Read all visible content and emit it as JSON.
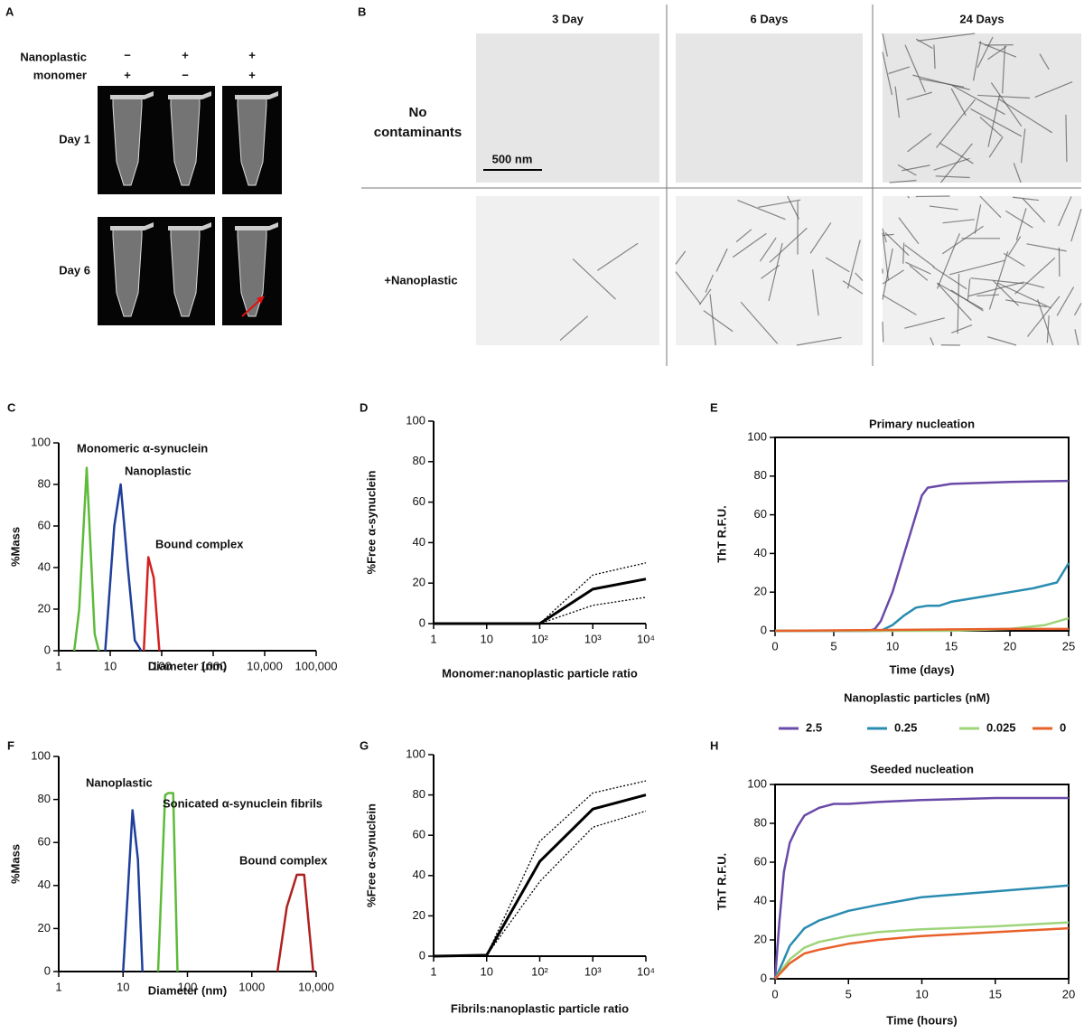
{
  "panel_a": {
    "label": "A",
    "row_header_labels": [
      "Nanoplastic",
      "monomer"
    ],
    "columns": [
      {
        "nanoplastic": "−",
        "monomer": "+"
      },
      {
        "nanoplastic": "+",
        "monomer": "−"
      },
      {
        "nanoplastic": "+",
        "monomer": "+"
      }
    ],
    "rows": [
      "Day 1",
      "Day 6"
    ]
  },
  "panel_b": {
    "label": "B",
    "columns": [
      "3 Day",
      "6 Days",
      "24 Days"
    ],
    "rows": [
      "No contaminants",
      "+Nanoplastic"
    ],
    "scale_bar": "500 nm"
  },
  "chart_data": [
    {
      "type": "line",
      "panel_label": "C",
      "xlabel": "Diameter (nm)",
      "ylabel": "%Mass",
      "xscale": "log",
      "xlim": [
        1,
        100000
      ],
      "xticks": [
        1,
        10,
        100,
        1000,
        {
          "value": 10000,
          "label": "10,000"
        },
        {
          "value": 100000,
          "label": "100,000"
        }
      ],
      "ylim": [
        0,
        100
      ],
      "yticks": [
        0,
        20,
        40,
        60,
        80,
        100
      ],
      "series": [
        {
          "color": "#5dbb3a",
          "x": [
            2,
            2.5,
            3.5,
            5,
            6
          ],
          "values": [
            0,
            20,
            88,
            8,
            0
          ]
        },
        {
          "color": "#1f3f9a",
          "x": [
            8,
            12,
            16,
            22,
            30,
            40
          ],
          "values": [
            0,
            60,
            80,
            40,
            5,
            0
          ]
        },
        {
          "color": "#d42020",
          "x": [
            45,
            55,
            70,
            90
          ],
          "values": [
            0,
            45,
            35,
            0
          ]
        }
      ],
      "annotations": [
        {
          "text": "Monomeric α-synuclein",
          "color": "#5dbb3a"
        },
        {
          "text": "Nanoplastic",
          "color": "#1f3f9a"
        },
        {
          "text": "Bound complex",
          "color": "#c02020"
        }
      ]
    },
    {
      "type": "line",
      "panel_label": "D",
      "xlabel": "Monomer:nanoplastic particle ratio",
      "ylabel": "%Free α-synuclein",
      "xscale": "log",
      "xlim": [
        1,
        10000
      ],
      "xticks": [
        1,
        10,
        {
          "value": 100,
          "label": "10²"
        },
        {
          "value": 1000,
          "label": "10³"
        },
        {
          "value": 10000,
          "label": "10⁴"
        }
      ],
      "ylim": [
        0,
        100
      ],
      "yticks": [
        0,
        20,
        40,
        60,
        80,
        100
      ],
      "series": [
        {
          "color": "#000000",
          "style": "solid",
          "x": [
            1,
            10,
            100,
            1000,
            10000
          ],
          "values": [
            0,
            0,
            0,
            17,
            22
          ]
        },
        {
          "color": "#000000",
          "style": "dotted",
          "x": [
            1,
            10,
            100,
            1000,
            10000
          ],
          "values": [
            0,
            0,
            0,
            24,
            30
          ]
        },
        {
          "color": "#000000",
          "style": "dotted",
          "x": [
            1,
            10,
            100,
            1000,
            10000
          ],
          "values": [
            0,
            0,
            0,
            9,
            13
          ]
        }
      ]
    },
    {
      "type": "line",
      "panel_label": "E",
      "title": "Primary nucleation",
      "xlabel": "Time (days)",
      "ylabel": "ThT R.F.U.",
      "frame": true,
      "xlim": [
        0,
        25
      ],
      "xticks": [
        0,
        5,
        10,
        15,
        20,
        25
      ],
      "ylim": [
        0,
        100
      ],
      "yticks": [
        0,
        20,
        40,
        60,
        80,
        100
      ],
      "legend_title": "Nanoplastic particles (nM)",
      "series": [
        {
          "name": "2.5",
          "color": "#6a4aa8",
          "x": [
            0,
            8,
            8.5,
            9,
            10,
            11,
            12,
            12.5,
            13,
            15,
            20,
            25
          ],
          "values": [
            0,
            0,
            1,
            5,
            20,
            40,
            60,
            70,
            74,
            76,
            77,
            77.5
          ]
        },
        {
          "name": "0.25",
          "color": "#2a8cb0",
          "x": [
            0,
            9,
            10,
            11,
            12,
            13,
            14,
            15,
            18,
            20,
            22,
            24,
            25
          ],
          "values": [
            0,
            0,
            3,
            8,
            12,
            13,
            13,
            15,
            18,
            20,
            22,
            25,
            35
          ]
        },
        {
          "name": "0.025",
          "color": "#9ed47a",
          "x": [
            0,
            15,
            20,
            23,
            25
          ],
          "values": [
            0,
            0,
            1,
            3,
            6.5
          ]
        },
        {
          "name": "0",
          "color": "#e8602a",
          "x": [
            0,
            20,
            25
          ],
          "values": [
            0,
            1,
            1
          ]
        }
      ]
    },
    {
      "type": "line",
      "panel_label": "F",
      "xlabel": "Diameter (nm)",
      "ylabel": "%Mass",
      "xscale": "log",
      "xlim": [
        1,
        10000
      ],
      "xticks": [
        1,
        10,
        100,
        1000,
        {
          "value": 10000,
          "label": "10,000"
        }
      ],
      "ylim": [
        0,
        100
      ],
      "yticks": [
        0,
        20,
        40,
        60,
        80,
        100
      ],
      "series": [
        {
          "color": "#1f3f9a",
          "x": [
            10,
            12,
            14,
            17,
            20
          ],
          "values": [
            0,
            40,
            75,
            52,
            0
          ]
        },
        {
          "color": "#5dbb3a",
          "x": [
            35,
            45,
            50,
            60,
            70
          ],
          "values": [
            0,
            82,
            83,
            83,
            0
          ]
        },
        {
          "color": "#b02020",
          "x": [
            2500,
            3500,
            5000,
            6500,
            9000
          ],
          "values": [
            0,
            30,
            45,
            45,
            0
          ]
        }
      ],
      "annotations": [
        {
          "text": "Nanoplastic",
          "color": "#1f3f9a"
        },
        {
          "text": "Sonicated α-synuclein fibrils",
          "color": "#5dbb3a"
        },
        {
          "text": "Bound complex",
          "color": "#b02020"
        }
      ]
    },
    {
      "type": "line",
      "panel_label": "G",
      "xlabel": "Fibrils:nanoplastic particle ratio",
      "ylabel": "%Free α-synuclein",
      "xscale": "log",
      "xlim": [
        1,
        10000
      ],
      "xticks": [
        1,
        10,
        {
          "value": 100,
          "label": "10²"
        },
        {
          "value": 1000,
          "label": "10³"
        },
        {
          "value": 10000,
          "label": "10⁴"
        }
      ],
      "ylim": [
        0,
        100
      ],
      "yticks": [
        0,
        20,
        40,
        60,
        80,
        100
      ],
      "series": [
        {
          "color": "#000000",
          "style": "solid",
          "x": [
            1,
            10,
            100,
            1000,
            10000
          ],
          "values": [
            0,
            0.5,
            47,
            73,
            80
          ]
        },
        {
          "color": "#000000",
          "style": "dotted",
          "x": [
            1,
            10,
            100,
            1000,
            10000
          ],
          "values": [
            0,
            0.5,
            57,
            81,
            87
          ]
        },
        {
          "color": "#000000",
          "style": "dotted",
          "x": [
            1,
            10,
            100,
            1000,
            10000
          ],
          "values": [
            0,
            0.5,
            37,
            64,
            72
          ]
        }
      ]
    },
    {
      "type": "line",
      "panel_label": "H",
      "title": "Seeded nucleation",
      "xlabel": "Time (hours)",
      "ylabel": "ThT R.F.U.",
      "frame": true,
      "xlim": [
        0,
        20
      ],
      "xticks": [
        0,
        5,
        10,
        15,
        20
      ],
      "ylim": [
        0,
        100
      ],
      "yticks": [
        0,
        20,
        40,
        60,
        80,
        100
      ],
      "series": [
        {
          "color": "#6a4aa8",
          "x": [
            0,
            0.3,
            0.6,
            1,
            1.5,
            2,
            3,
            4,
            5,
            7,
            10,
            15,
            20
          ],
          "values": [
            0,
            30,
            55,
            70,
            78,
            84,
            88,
            90,
            90,
            91,
            92,
            93,
            93
          ]
        },
        {
          "color": "#2a8cb0",
          "x": [
            0,
            0.5,
            1,
            2,
            3,
            5,
            7,
            10,
            15,
            20
          ],
          "values": [
            0,
            8,
            17,
            26,
            30,
            35,
            38,
            42,
            45,
            48
          ]
        },
        {
          "color": "#9ed47a",
          "x": [
            0,
            1,
            2,
            3,
            5,
            7,
            10,
            15,
            20
          ],
          "values": [
            0,
            10,
            16,
            19,
            22,
            24,
            25.5,
            27,
            29
          ]
        },
        {
          "color": "#e8602a",
          "x": [
            0,
            1,
            2,
            3,
            5,
            7,
            10,
            15,
            20
          ],
          "values": [
            0,
            8,
            13,
            15,
            18,
            20,
            22,
            24,
            26
          ]
        }
      ]
    }
  ]
}
